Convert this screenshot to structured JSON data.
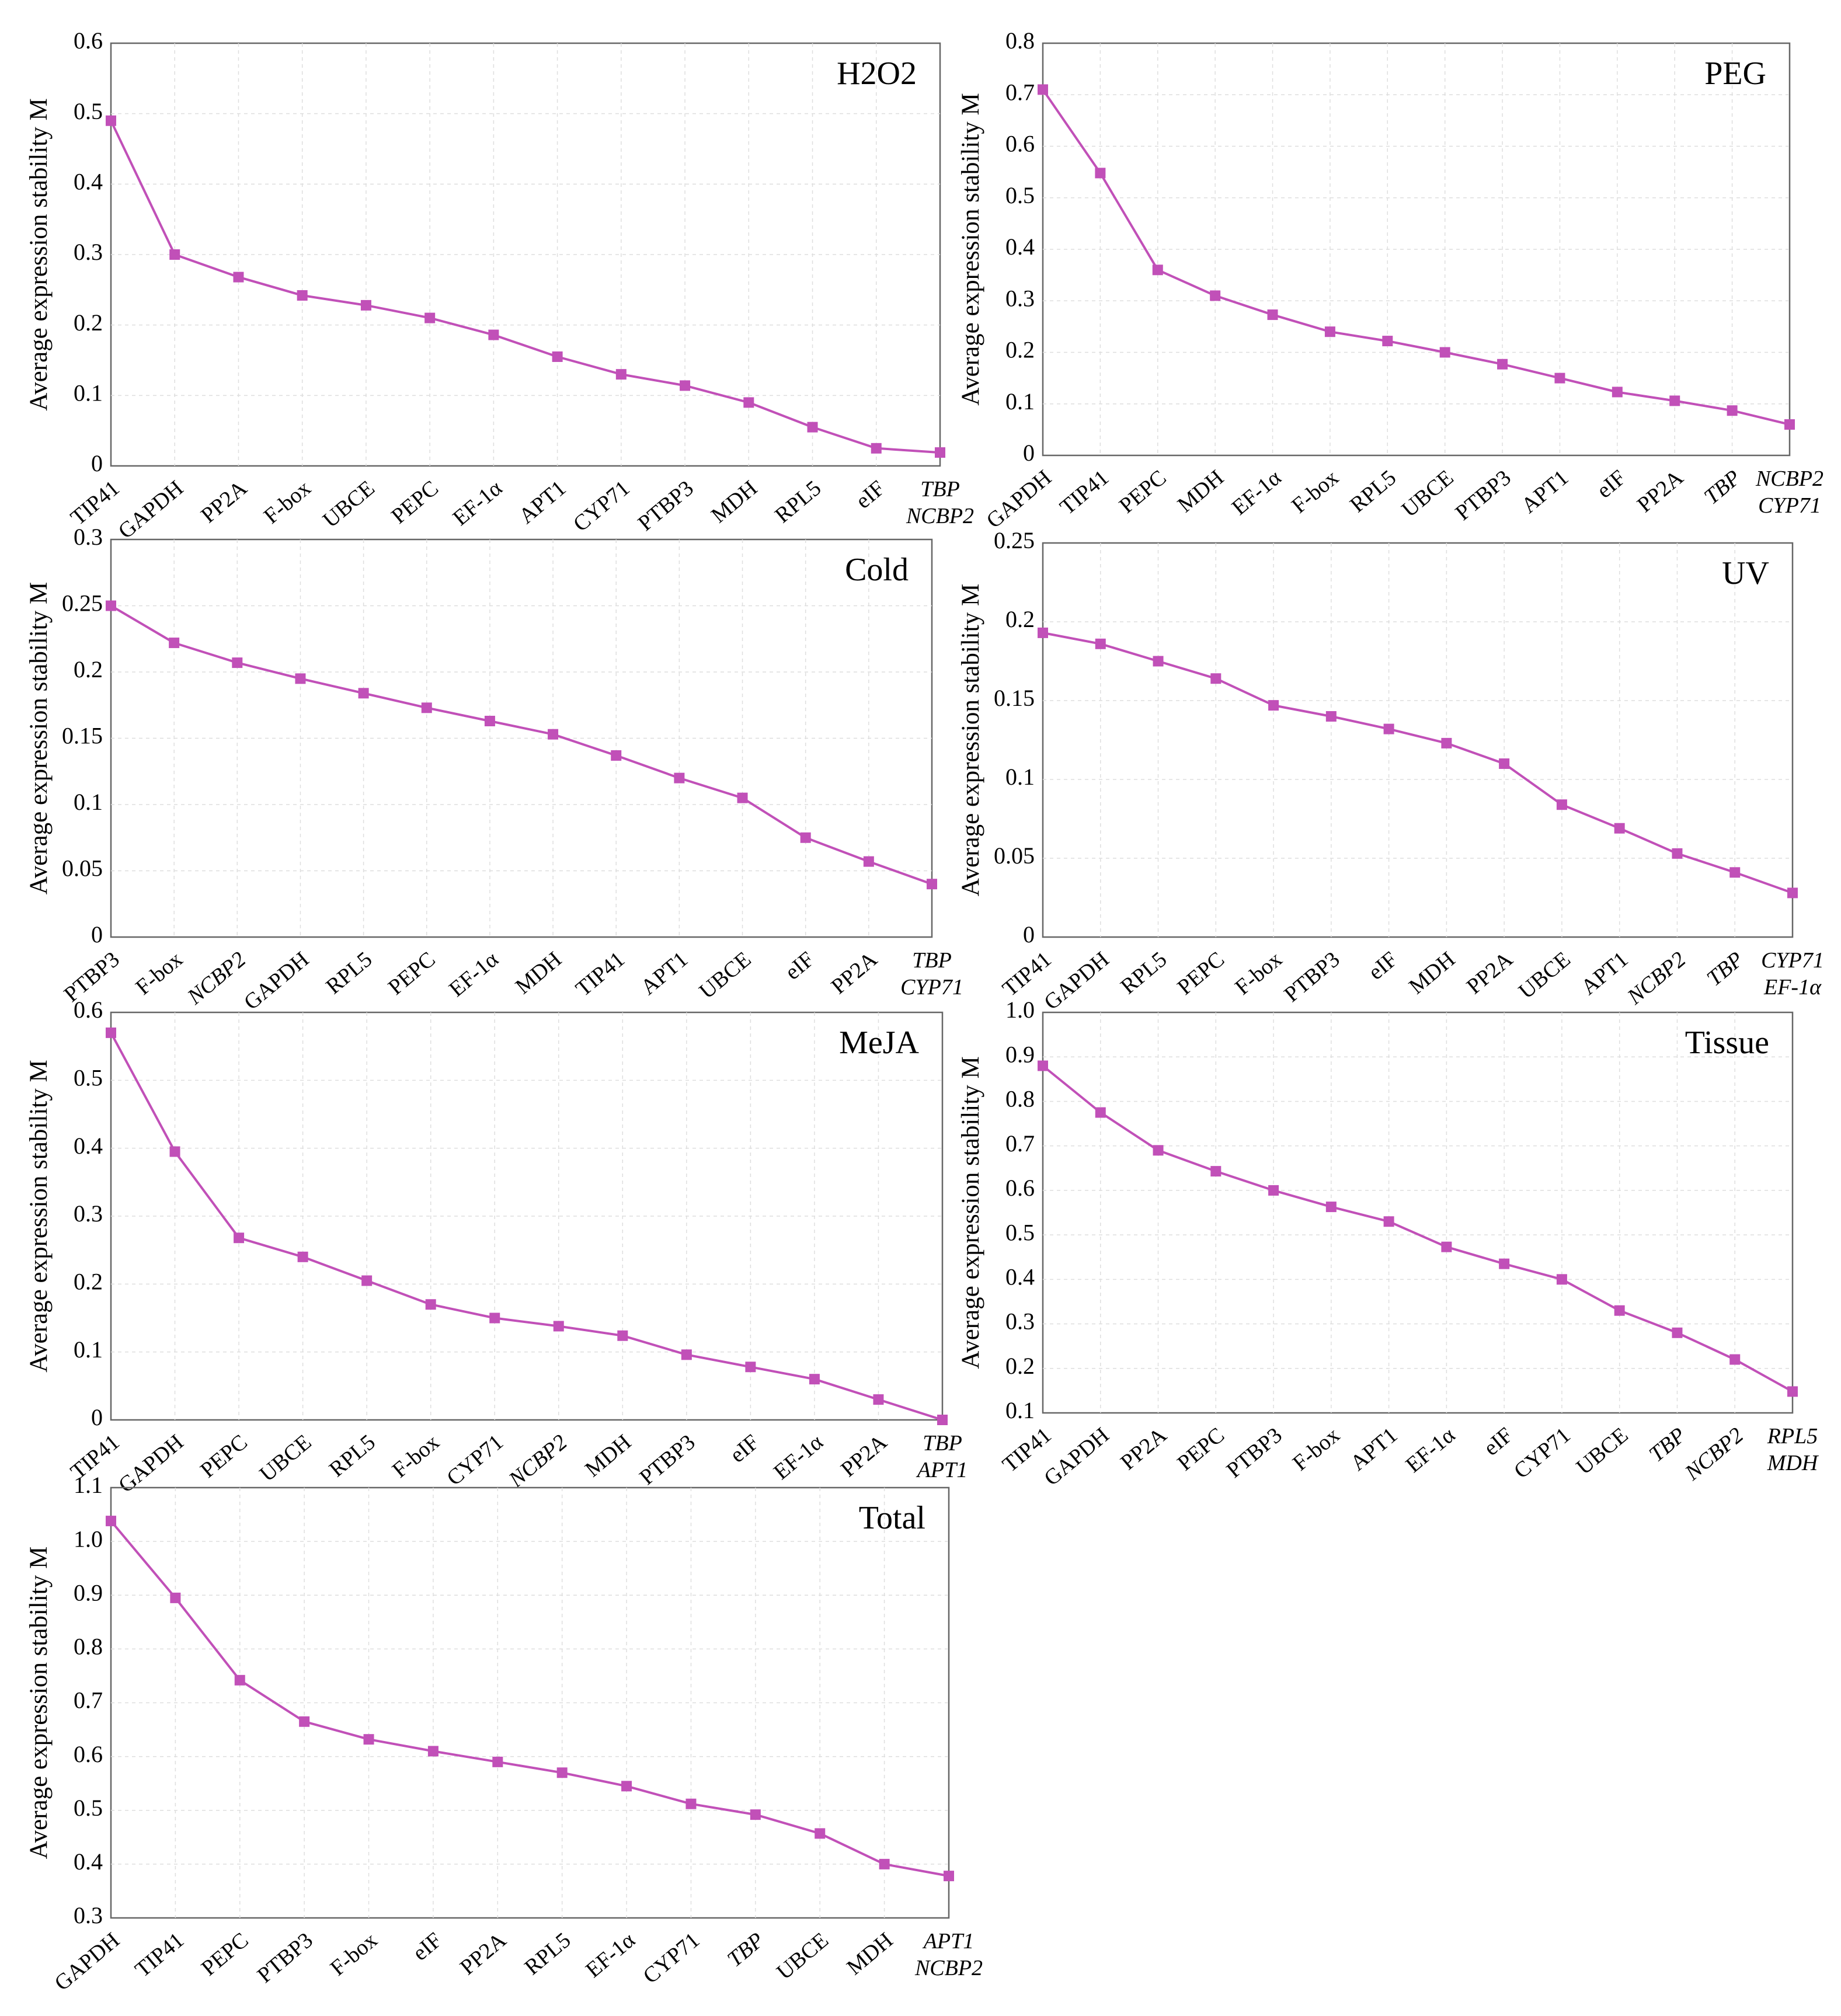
{
  "colors": {
    "line": "#c150b8",
    "marker": "#c150b8",
    "axis": "#666666",
    "grid": "#dedede",
    "text": "#000000"
  },
  "chart_data": [
    {
      "type": "line",
      "title": "H2O2",
      "ylabel": "Average expression stability M",
      "ylim": [
        0,
        0.6
      ],
      "yticks": [
        "0",
        "0.1",
        "0.2",
        "0.3",
        "0.4",
        "0.5",
        "0.6"
      ],
      "categories": [
        "TIP41",
        "GAPDH",
        "PP2A",
        "F-box",
        "UBCE",
        "PEPC",
        "EF-1α",
        "APT1",
        "CYP71",
        "PTBP3",
        "MDH",
        "RPL5",
        "eIF",
        "TBP / NCBP2"
      ],
      "x_labels": [
        [
          "TIP41"
        ],
        [
          "GAPDH"
        ],
        [
          "PP2A"
        ],
        [
          "F-box"
        ],
        [
          "UBCE"
        ],
        [
          "PEPC"
        ],
        [
          "EF-1α"
        ],
        [
          "APT1"
        ],
        [
          "CYP71"
        ],
        [
          "PTBP3"
        ],
        [
          "MDH"
        ],
        [
          "RPL5"
        ],
        [
          "eIF"
        ],
        [
          "TBP",
          "NCBP2"
        ]
      ],
      "italic": [
        "TBP",
        "NCBP2"
      ],
      "series": [
        {
          "values": [
            0.49,
            0.3,
            0.268,
            0.242,
            0.228,
            0.21,
            0.186,
            0.155,
            0.13,
            0.114,
            0.09,
            0.055,
            0.025,
            0.019
          ]
        }
      ],
      "grid": true
    },
    {
      "type": "line",
      "title": "PEG",
      "ylabel": "Average expression stability M",
      "ylim": [
        0,
        0.8
      ],
      "yticks": [
        "0",
        "0.1",
        "0.2",
        "0.3",
        "0.4",
        "0.5",
        "0.6",
        "0.7",
        "0.8"
      ],
      "categories": [
        "GAPDH",
        "TIP41",
        "PEPC",
        "MDH",
        "EF-1α",
        "F-box",
        "RPL5",
        "UBCE",
        "PTBP3",
        "APT1",
        "eIF",
        "PP2A",
        "TBP",
        "NCBP2 / CYP71"
      ],
      "x_labels": [
        [
          "GAPDH"
        ],
        [
          "TIP41"
        ],
        [
          "PEPC"
        ],
        [
          "MDH"
        ],
        [
          "EF-1α"
        ],
        [
          "F-box"
        ],
        [
          "RPL5"
        ],
        [
          "UBCE"
        ],
        [
          "PTBP3"
        ],
        [
          "APT1"
        ],
        [
          "eIF"
        ],
        [
          "PP2A"
        ],
        [
          "TBP"
        ],
        [
          "NCBP2",
          "CYP71"
        ]
      ],
      "italic": [
        "TBP",
        "NCBP2",
        "CYP71"
      ],
      "series": [
        {
          "values": [
            0.71,
            0.548,
            0.36,
            0.31,
            0.273,
            0.24,
            0.222,
            0.2,
            0.177,
            0.15,
            0.123,
            0.106,
            0.087,
            0.06
          ]
        }
      ],
      "grid": true
    },
    {
      "type": "line",
      "title": "Cold",
      "ylabel": "Average expression stability M",
      "ylim": [
        0,
        0.3
      ],
      "yticks": [
        "0",
        "0.05",
        "0.1",
        "0.15",
        "0.2",
        "0.25",
        "0.3"
      ],
      "categories": [
        "PTBP3",
        "F-box",
        "NCBP2",
        "GAPDH",
        "RPL5",
        "PEPC",
        "EF-1α",
        "MDH",
        "TIP41",
        "APT1",
        "UBCE",
        "eIF",
        "PP2A",
        "TBP / CYP71"
      ],
      "x_labels": [
        [
          "PTBP3"
        ],
        [
          "F-box"
        ],
        [
          "NCBP2"
        ],
        [
          "GAPDH"
        ],
        [
          "RPL5"
        ],
        [
          "PEPC"
        ],
        [
          "EF-1α"
        ],
        [
          "MDH"
        ],
        [
          "TIP41"
        ],
        [
          "APT1"
        ],
        [
          "UBCE"
        ],
        [
          "eIF"
        ],
        [
          "PP2A"
        ],
        [
          "TBP",
          "CYP71"
        ]
      ],
      "italic": [
        "NCBP2",
        "TBP",
        "CYP71"
      ],
      "series": [
        {
          "values": [
            0.25,
            0.222,
            0.207,
            0.195,
            0.184,
            0.173,
            0.163,
            0.153,
            0.137,
            0.12,
            0.105,
            0.075,
            0.057,
            0.04
          ]
        }
      ],
      "grid": true
    },
    {
      "type": "line",
      "title": "UV",
      "ylabel": "Average expression stability M",
      "ylim": [
        0,
        0.25
      ],
      "yticks": [
        "0",
        "0.05",
        "0.1",
        "0.15",
        "0.2",
        "0.25"
      ],
      "categories": [
        "TIP41",
        "GAPDH",
        "RPL5",
        "PEPC",
        "F-box",
        "PTBP3",
        "eIF",
        "MDH",
        "PP2A",
        "UBCE",
        "APT1",
        "NCBP2",
        "TBP",
        "CYP71 / EF-1α"
      ],
      "x_labels": [
        [
          "TIP41"
        ],
        [
          "GAPDH"
        ],
        [
          "RPL5"
        ],
        [
          "PEPC"
        ],
        [
          "F-box"
        ],
        [
          "PTBP3"
        ],
        [
          "eIF"
        ],
        [
          "MDH"
        ],
        [
          "PP2A"
        ],
        [
          "UBCE"
        ],
        [
          "APT1"
        ],
        [
          "NCBP2"
        ],
        [
          "TBP"
        ],
        [
          "CYP71",
          "EF-1α"
        ]
      ],
      "italic": [
        "NCBP2",
        "TBP",
        "CYP71",
        "EF-1α"
      ],
      "series": [
        {
          "values": [
            0.193,
            0.186,
            0.175,
            0.164,
            0.147,
            0.14,
            0.132,
            0.123,
            0.11,
            0.084,
            0.069,
            0.053,
            0.041,
            0.028
          ]
        }
      ],
      "grid": true
    },
    {
      "type": "line",
      "title": "MeJA",
      "ylabel": "Average expression stability M",
      "ylim": [
        0,
        0.6
      ],
      "yticks": [
        "0",
        "0.1",
        "0.2",
        "0.3",
        "0.4",
        "0.5",
        "0.6"
      ],
      "categories": [
        "TIP41",
        "GAPDH",
        "PEPC",
        "UBCE",
        "RPL5",
        "F-box",
        "CYP71",
        "NCBP2",
        "MDH",
        "PTBP3",
        "eIF",
        "EF-1α",
        "PP2A",
        "TBP / APT1"
      ],
      "x_labels": [
        [
          "TIP41"
        ],
        [
          "GAPDH"
        ],
        [
          "PEPC"
        ],
        [
          "UBCE"
        ],
        [
          "RPL5"
        ],
        [
          "F-box"
        ],
        [
          "CYP71"
        ],
        [
          "NCBP2"
        ],
        [
          "MDH"
        ],
        [
          "PTBP3"
        ],
        [
          "eIF"
        ],
        [
          "EF-1α"
        ],
        [
          "PP2A"
        ],
        [
          "TBP",
          "APT1"
        ]
      ],
      "italic": [
        "NCBP2",
        "TBP",
        "APT1"
      ],
      "series": [
        {
          "values": [
            0.57,
            0.395,
            0.268,
            0.24,
            0.205,
            0.17,
            0.15,
            0.138,
            0.124,
            0.096,
            0.078,
            0.06,
            0.03,
            0.0
          ]
        }
      ],
      "grid": true
    },
    {
      "type": "line",
      "title": "Tissue",
      "ylabel": "Average expression stability M",
      "ylim": [
        0.1,
        1.0
      ],
      "yticks": [
        "0.1",
        "0.2",
        "0.3",
        "0.4",
        "0.5",
        "0.6",
        "0.7",
        "0.8",
        "0.9",
        "1.0"
      ],
      "categories": [
        "TIP41",
        "GAPDH",
        "PP2A",
        "PEPC",
        "PTBP3",
        "F-box",
        "APT1",
        "EF-1α",
        "eIF",
        "CYP71",
        "UBCE",
        "TBP",
        "NCBP2",
        "RPL5 / MDH"
      ],
      "x_labels": [
        [
          "TIP41"
        ],
        [
          "GAPDH"
        ],
        [
          "PP2A"
        ],
        [
          "PEPC"
        ],
        [
          "PTBP3"
        ],
        [
          "F-box"
        ],
        [
          "APT1"
        ],
        [
          "EF-1α"
        ],
        [
          "eIF"
        ],
        [
          "CYP71"
        ],
        [
          "UBCE"
        ],
        [
          "TBP"
        ],
        [
          "NCBP2"
        ],
        [
          "RPL5",
          "MDH"
        ]
      ],
      "italic": [
        "TBP",
        "NCBP2",
        "RPL5",
        "MDH"
      ],
      "series": [
        {
          "values": [
            0.88,
            0.775,
            0.69,
            0.643,
            0.6,
            0.563,
            0.53,
            0.473,
            0.435,
            0.4,
            0.33,
            0.28,
            0.22,
            0.148
          ]
        }
      ],
      "grid": true
    },
    {
      "type": "line",
      "title": "Total",
      "ylabel": "Average expression stability M",
      "ylim": [
        0.3,
        1.1
      ],
      "yticks": [
        "0.3",
        "0.4",
        "0.5",
        "0.6",
        "0.7",
        "0.8",
        "0.9",
        "1.0",
        "1.1"
      ],
      "categories": [
        "GAPDH",
        "TIP41",
        "PEPC",
        "PTBP3",
        "F-box",
        "eIF",
        "PP2A",
        "RPL5",
        "EF-1α",
        "CYP71",
        "TBP",
        "UBCE",
        "MDH",
        "APT1 / NCBP2"
      ],
      "x_labels": [
        [
          "GAPDH"
        ],
        [
          "TIP41"
        ],
        [
          "PEPC"
        ],
        [
          "PTBP3"
        ],
        [
          "F-box"
        ],
        [
          "eIF"
        ],
        [
          "PP2A"
        ],
        [
          "RPL5"
        ],
        [
          "EF-1α"
        ],
        [
          "CYP71"
        ],
        [
          "TBP"
        ],
        [
          "UBCE"
        ],
        [
          "MDH"
        ],
        [
          "APT1",
          "NCBP2"
        ]
      ],
      "italic": [
        "TBP",
        "APT1",
        "NCBP2"
      ],
      "series": [
        {
          "values": [
            1.038,
            0.895,
            0.742,
            0.665,
            0.632,
            0.61,
            0.59,
            0.57,
            0.545,
            0.512,
            0.492,
            0.457,
            0.4,
            0.378
          ]
        }
      ],
      "grid": true
    }
  ]
}
